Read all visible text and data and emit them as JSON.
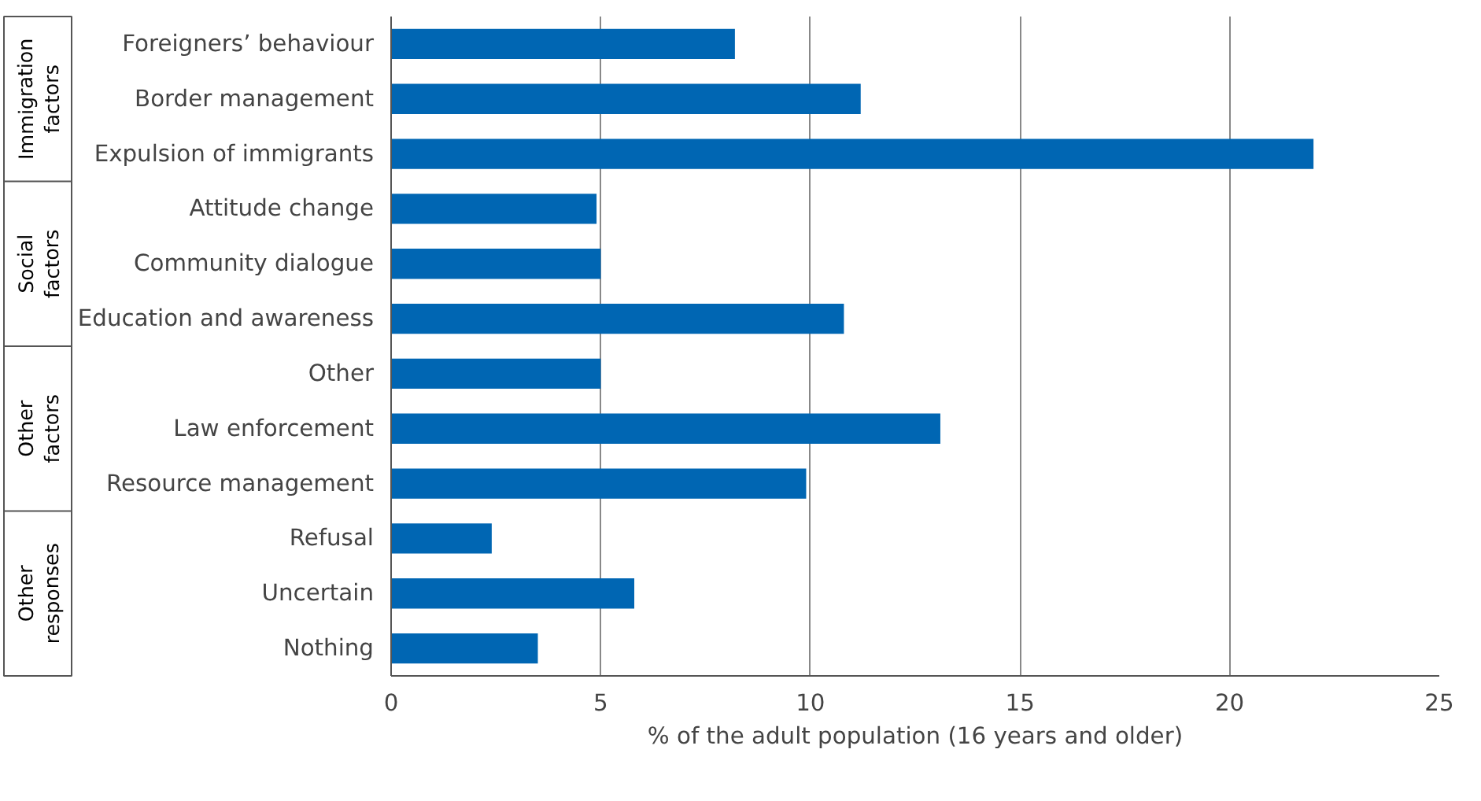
{
  "chart_data": {
    "type": "bar",
    "orientation": "horizontal",
    "categories": [
      "Foreigners’ behaviour",
      "Border management",
      "Expulsion of immigrants",
      "Attitude change",
      "Community dialogue",
      "Education and awareness",
      "Other",
      "Law enforcement",
      "Resource management",
      "Refusal",
      "Uncertain",
      "Nothing"
    ],
    "values": [
      8.2,
      11.2,
      22.0,
      4.9,
      5.0,
      10.8,
      5.0,
      13.1,
      9.9,
      2.4,
      5.8,
      3.5
    ],
    "color": "#0066b3",
    "xlabel": "% of the adult population (16 years and older)",
    "xlim": [
      0,
      25
    ],
    "xticks": [
      0,
      5,
      10,
      15,
      20,
      25
    ],
    "grid": "x",
    "annotations": [
      "Immigration factors",
      "Social factors",
      "Other factors",
      "Other responses"
    ]
  }
}
